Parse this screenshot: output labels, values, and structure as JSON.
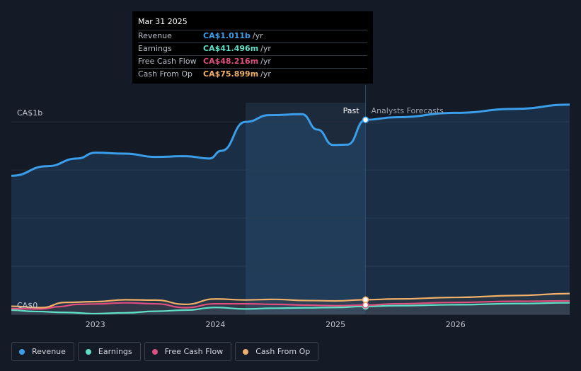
{
  "tooltip": {
    "date": "Mar 31 2025",
    "rows": [
      {
        "label": "Revenue",
        "value": "CA$1.011b",
        "unit": "/yr",
        "color": "#3b9eea"
      },
      {
        "label": "Earnings",
        "value": "CA$41.496m",
        "unit": "/yr",
        "color": "#5fe0c6"
      },
      {
        "label": "Free Cash Flow",
        "value": "CA$48.216m",
        "unit": "/yr",
        "color": "#dd4f7e"
      },
      {
        "label": "Cash From Op",
        "value": "CA$75.899m",
        "unit": "/yr",
        "color": "#f1b06a"
      }
    ]
  },
  "labels": {
    "past": "Past",
    "forecast": "Analysts Forecasts"
  },
  "legend": [
    {
      "label": "Revenue",
      "color": "#3b9eea"
    },
    {
      "label": "Earnings",
      "color": "#5fe0c6"
    },
    {
      "label": "Free Cash Flow",
      "color": "#dd4f7e"
    },
    {
      "label": "Cash From Op",
      "color": "#f1b06a"
    }
  ],
  "chart_data": {
    "type": "area",
    "y_unit": "CA$ millions",
    "ylim": [
      0,
      1100
    ],
    "y_tick_labels": [
      {
        "value": 1000,
        "label": "CA$1b"
      },
      {
        "value": 0,
        "label": "CA$0"
      }
    ],
    "x_ticks": [
      2023,
      2024,
      2025,
      2026
    ],
    "xlim": [
      2022.3,
      2026.95
    ],
    "past_until": 2025.25,
    "highlight_from": 2024.25,
    "series": [
      {
        "name": "Revenue",
        "color": "#3b9eea",
        "filled": true,
        "points": [
          [
            2022.3,
            720
          ],
          [
            2022.6,
            770
          ],
          [
            2022.85,
            810
          ],
          [
            2023.0,
            840
          ],
          [
            2023.25,
            835
          ],
          [
            2023.5,
            818
          ],
          [
            2023.75,
            822
          ],
          [
            2023.95,
            810
          ],
          [
            2024.05,
            850
          ],
          [
            2024.25,
            1000
          ],
          [
            2024.45,
            1035
          ],
          [
            2024.72,
            1040
          ],
          [
            2024.85,
            960
          ],
          [
            2024.98,
            880
          ],
          [
            2025.1,
            882
          ],
          [
            2025.25,
            1011
          ],
          [
            2025.5,
            1024
          ],
          [
            2026.0,
            1047
          ],
          [
            2026.5,
            1068
          ],
          [
            2026.95,
            1090
          ]
        ]
      },
      {
        "name": "Earnings",
        "color": "#5fe0c6",
        "filled": false,
        "points": [
          [
            2022.3,
            22
          ],
          [
            2022.5,
            15
          ],
          [
            2022.75,
            10
          ],
          [
            2023.0,
            4
          ],
          [
            2023.25,
            8
          ],
          [
            2023.5,
            16
          ],
          [
            2023.75,
            22
          ],
          [
            2024.0,
            36
          ],
          [
            2024.25,
            28
          ],
          [
            2024.5,
            32
          ],
          [
            2024.75,
            34
          ],
          [
            2025.0,
            36
          ],
          [
            2025.25,
            41.5
          ],
          [
            2025.5,
            45
          ],
          [
            2026.0,
            50
          ],
          [
            2026.5,
            56
          ],
          [
            2026.95,
            60
          ]
        ]
      },
      {
        "name": "Free Cash Flow",
        "color": "#dd4f7e",
        "filled": false,
        "points": [
          [
            2022.3,
            30
          ],
          [
            2022.55,
            28
          ],
          [
            2022.7,
            40
          ],
          [
            2022.85,
            52
          ],
          [
            2023.0,
            54
          ],
          [
            2023.25,
            60
          ],
          [
            2023.5,
            55
          ],
          [
            2023.75,
            35
          ],
          [
            2024.0,
            55
          ],
          [
            2024.25,
            55
          ],
          [
            2024.5,
            52
          ],
          [
            2024.75,
            48
          ],
          [
            2025.0,
            45
          ],
          [
            2025.25,
            48.2
          ],
          [
            2025.5,
            55
          ],
          [
            2026.0,
            62
          ],
          [
            2026.5,
            68
          ],
          [
            2026.95,
            70
          ]
        ]
      },
      {
        "name": "Cash From Op",
        "color": "#f1b06a",
        "filled": false,
        "points": [
          [
            2022.3,
            42
          ],
          [
            2022.55,
            35
          ],
          [
            2022.75,
            62
          ],
          [
            2023.0,
            66
          ],
          [
            2023.25,
            76
          ],
          [
            2023.5,
            74
          ],
          [
            2023.75,
            52
          ],
          [
            2024.0,
            80
          ],
          [
            2024.25,
            75
          ],
          [
            2024.5,
            78
          ],
          [
            2024.75,
            72
          ],
          [
            2025.0,
            70
          ],
          [
            2025.25,
            75.9
          ],
          [
            2025.5,
            80
          ],
          [
            2026.0,
            88
          ],
          [
            2026.5,
            98
          ],
          [
            2026.95,
            108
          ]
        ]
      }
    ]
  }
}
